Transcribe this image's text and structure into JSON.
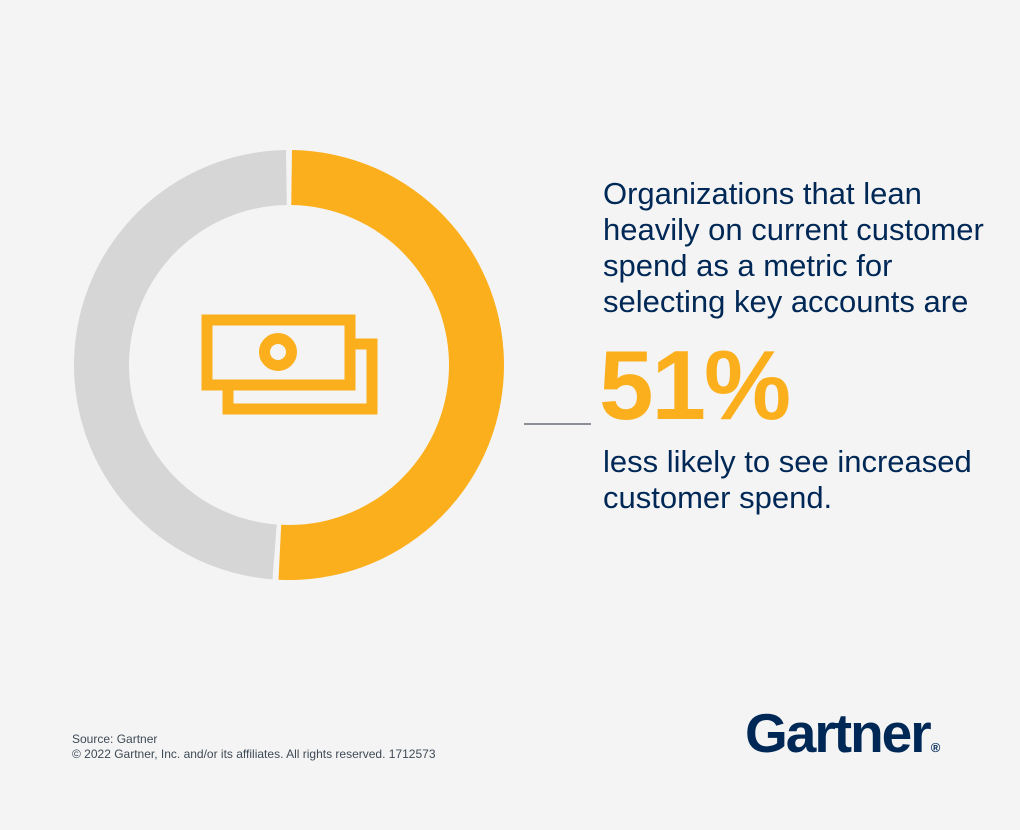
{
  "chart_data": {
    "type": "pie",
    "variant": "donut",
    "categories": [
      "51%",
      ""
    ],
    "values": [
      51,
      49
    ],
    "colors": [
      "#fcaf1d",
      "#d6d6d6"
    ],
    "center_icon": "money-bills-icon"
  },
  "stat": {
    "lead": "Organizations that lean heavily on current customer spend as a metric for selecting key accounts are",
    "value": "51%",
    "tail": "less likely to see increased customer spend."
  },
  "footer": {
    "source": "Source: Gartner",
    "copyright": "© 2022 Gartner, Inc. and/or its affiliates. All rights reserved. 1712573"
  },
  "brand": {
    "logo_text": "Gartner",
    "logo_mark": "®",
    "primary_color": "#002856",
    "accent_color": "#fcaf1d"
  }
}
